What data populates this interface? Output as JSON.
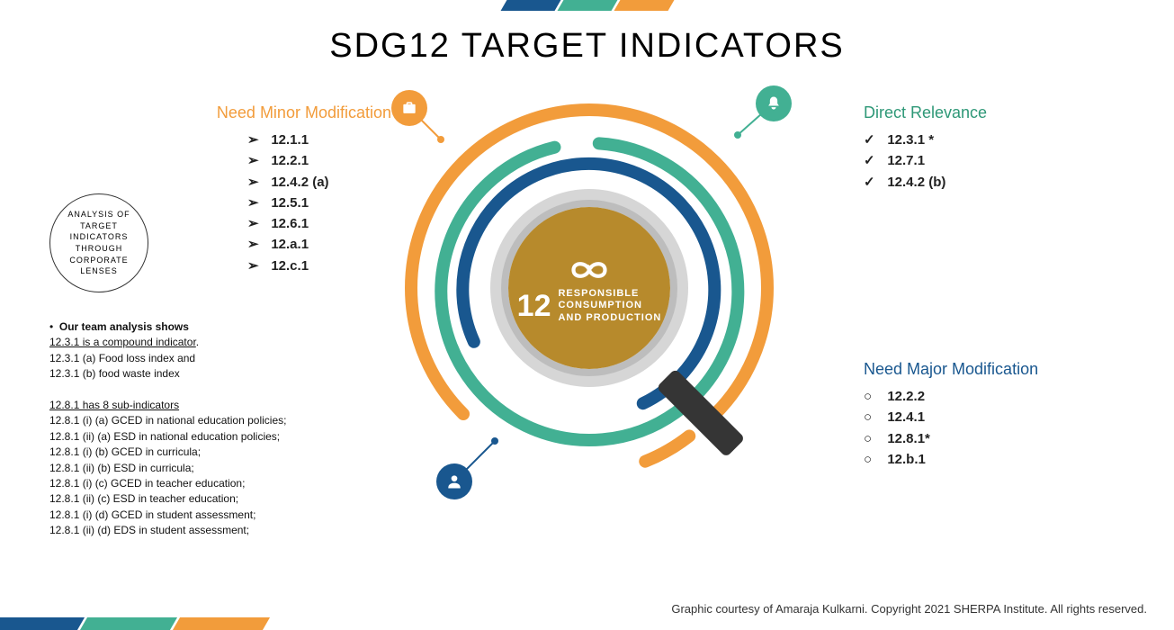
{
  "colors": {
    "orange": "#f29c3b",
    "teal": "#42b093",
    "blue": "#19578f",
    "sdg_brown": "#b78a2c",
    "text": "#1a1a1a"
  },
  "title": "SDG12 TARGET INDICATORS",
  "sdg": {
    "number": "12",
    "line1": "RESPONSIBLE",
    "line2": "CONSUMPTION",
    "line3": "AND PRODUCTION"
  },
  "categories": {
    "minor": {
      "title": "Need Minor Modification",
      "title_color": "#f29c3b",
      "bullet": "➢",
      "items": [
        "12.1.1",
        "12.2.1",
        "12.4.2 (a)",
        "12.5.1",
        "12.6.1",
        "12.a.1",
        "12.c.1"
      ]
    },
    "direct": {
      "title": "Direct Relevance",
      "title_color": "#42b093",
      "bullet": "✓",
      "items": [
        "12.3.1 *",
        "12.7.1",
        "12.4.2 (b)"
      ]
    },
    "major": {
      "title": "Need Major Modification",
      "title_color": "#19578f",
      "bullet": "○",
      "items": [
        "12.2.2",
        "12.4.1",
        "12.8.1*",
        "12.b.1"
      ]
    }
  },
  "analysis_circle": "ANALYSIS OF TARGET INDICATORS THROUGH CORPORATE LENSES",
  "notes": {
    "lead": "Our team analysis shows",
    "p1_u": "12.3.1 is a compound indicator",
    "p1_a": "12.3.1 (a) Food loss index and",
    "p1_b": "12.3.1 (b) food waste index",
    "p2_u": "12.8.1 has 8 sub-indicators",
    "sub": [
      "12.8.1 (i)  (a) GCED in national education policies;",
      "12.8.1 (ii) (a) ESD in national education policies;",
      "12.8.1 (i)  (b) GCED in curricula;",
      "12.8.1 (ii) (b) ESD in curricula;",
      "12.8.1 (i)  (c) GCED in teacher education;",
      "12.8.1 (ii) (c) ESD in teacher education;",
      "12.8.1 (i)  (d) GCED in student assessment;",
      "12.8.1 (ii) (d) EDS in student assessment;"
    ]
  },
  "footer": "Graphic courtesy of Amaraja Kulkarni.  Copyright 2021 SHERPA Institute.  All rights reserved."
}
